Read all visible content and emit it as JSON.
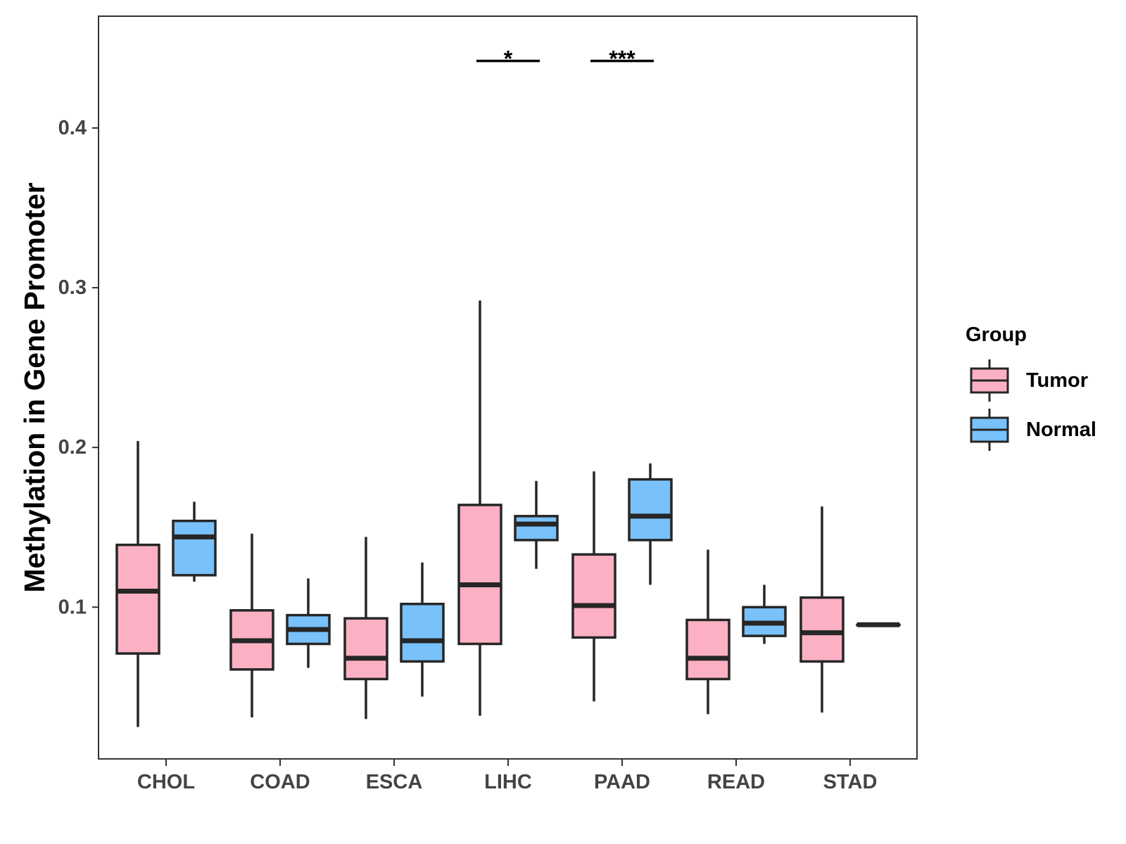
{
  "chart_data": {
    "type": "boxplot",
    "title": "",
    "xlabel": "",
    "ylabel": "Methylation in Gene Promoter",
    "ylim": [
      0.005,
      0.47
    ],
    "yticks": [
      0.1,
      0.2,
      0.3,
      0.4
    ],
    "ytick_labels": [
      "0.1",
      "0.2",
      "0.3",
      "0.4"
    ],
    "grid": false,
    "categories": [
      "CHOL",
      "COAD",
      "ESCA",
      "LIHC",
      "PAAD",
      "READ",
      "STAD"
    ],
    "legend": {
      "title": "Group",
      "position": "right",
      "entries": [
        {
          "name": "Tumor",
          "color": "#fbb1c3"
        },
        {
          "name": "Normal",
          "color": "#78c1fa"
        }
      ]
    },
    "series": [
      {
        "name": "Tumor",
        "color": "#fbb1c3",
        "boxes": [
          {
            "category": "CHOL",
            "min": 0.025,
            "q1": 0.071,
            "median": 0.11,
            "q3": 0.139,
            "max": 0.204
          },
          {
            "category": "COAD",
            "min": 0.031,
            "q1": 0.061,
            "median": 0.079,
            "q3": 0.098,
            "max": 0.146
          },
          {
            "category": "ESCA",
            "min": 0.03,
            "q1": 0.055,
            "median": 0.068,
            "q3": 0.093,
            "max": 0.144
          },
          {
            "category": "LIHC",
            "min": 0.032,
            "q1": 0.077,
            "median": 0.114,
            "q3": 0.164,
            "max": 0.292
          },
          {
            "category": "PAAD",
            "min": 0.041,
            "q1": 0.081,
            "median": 0.101,
            "q3": 0.133,
            "max": 0.185
          },
          {
            "category": "READ",
            "min": 0.033,
            "q1": 0.055,
            "median": 0.068,
            "q3": 0.092,
            "max": 0.136
          },
          {
            "category": "STAD",
            "min": 0.034,
            "q1": 0.066,
            "median": 0.084,
            "q3": 0.106,
            "max": 0.163
          }
        ]
      },
      {
        "name": "Normal",
        "color": "#78c1fa",
        "boxes": [
          {
            "category": "CHOL",
            "min": 0.116,
            "q1": 0.12,
            "median": 0.144,
            "q3": 0.154,
            "max": 0.166
          },
          {
            "category": "COAD",
            "min": 0.062,
            "q1": 0.077,
            "median": 0.086,
            "q3": 0.095,
            "max": 0.118
          },
          {
            "category": "ESCA",
            "min": 0.044,
            "q1": 0.066,
            "median": 0.079,
            "q3": 0.102,
            "max": 0.128
          },
          {
            "category": "LIHC",
            "min": 0.124,
            "q1": 0.142,
            "median": 0.152,
            "q3": 0.157,
            "max": 0.179
          },
          {
            "category": "PAAD",
            "min": 0.114,
            "q1": 0.142,
            "median": 0.157,
            "q3": 0.18,
            "max": 0.19
          },
          {
            "category": "READ",
            "min": 0.077,
            "q1": 0.082,
            "median": 0.09,
            "q3": 0.1,
            "max": 0.114
          },
          {
            "category": "STAD",
            "min": 0.089,
            "q1": 0.089,
            "median": 0.089,
            "q3": 0.089,
            "max": 0.089
          }
        ]
      }
    ],
    "annotations": [
      {
        "category": "LIHC",
        "label": "*",
        "y": 0.442
      },
      {
        "category": "PAAD",
        "label": "***",
        "y": 0.442
      }
    ]
  }
}
